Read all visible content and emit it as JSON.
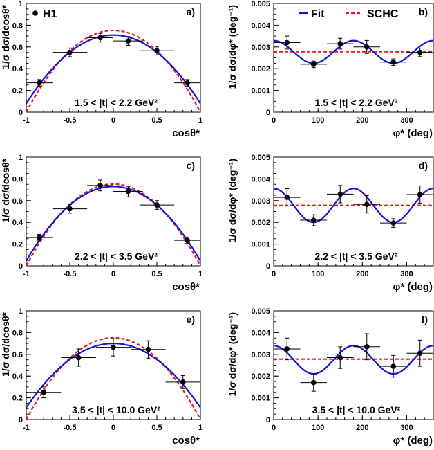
{
  "figure": {
    "legend_left": {
      "marker": "●",
      "label": "H1"
    },
    "legend_right": {
      "fit_label": "Fit",
      "schc_label": "SCHC"
    },
    "colors": {
      "fit": "#1515d6",
      "schc": "#e01b1b",
      "data": "#000000",
      "axis": "#000000"
    }
  },
  "chart_data": [
    {
      "type": "scatter",
      "panel": "a)",
      "t_range": "1.5 < |t| < 2.2 GeV²",
      "xlabel": "cosθ*",
      "ylabel": "1/σ dσ/dcosθ*",
      "xlim": [
        -1,
        1
      ],
      "ylim": [
        0,
        1
      ],
      "xticks": [
        -1,
        -0.5,
        0,
        0.5,
        1
      ],
      "xtick_labels": [
        "-1",
        "-0.5",
        "0",
        "0.5",
        "1"
      ],
      "yticks": [
        0,
        0.2,
        0.4,
        0.6,
        0.8,
        1
      ],
      "ytick_labels": [
        "0",
        "0.2",
        "0.4",
        "0.6",
        "0.8",
        "1"
      ],
      "points": [
        {
          "x": -0.85,
          "y": 0.27,
          "xerr": 0.15,
          "yerr": 0.03
        },
        {
          "x": -0.5,
          "y": 0.55,
          "xerr": 0.2,
          "yerr": 0.04
        },
        {
          "x": -0.15,
          "y": 0.685,
          "xerr": 0.15,
          "yerr": 0.04
        },
        {
          "x": 0.17,
          "y": 0.655,
          "xerr": 0.17,
          "yerr": 0.04
        },
        {
          "x": 0.5,
          "y": 0.565,
          "xerr": 0.2,
          "yerr": 0.04
        },
        {
          "x": 0.85,
          "y": 0.27,
          "xerr": 0.15,
          "yerr": 0.03
        }
      ],
      "fit": {
        "form": "parabola",
        "a": 0.709,
        "b": 0.63
      },
      "schc": {
        "form": "parabola",
        "a": 0.752,
        "b": 0.752
      }
    },
    {
      "type": "scatter",
      "panel": "b)",
      "t_range": "1.5 < |t| < 2.2 GeV²",
      "xlabel": "φ* (deg)",
      "ylabel": "1/σ dσ/dφ* (deg⁻¹)",
      "xlim": [
        0,
        360
      ],
      "ylim": [
        0,
        0.005
      ],
      "xticks": [
        0,
        100,
        200,
        300
      ],
      "xtick_labels": [
        "0",
        "100",
        "200",
        "300"
      ],
      "yticks": [
        0,
        0.001,
        0.002,
        0.003,
        0.004,
        0.005
      ],
      "ytick_labels": [
        "0",
        "0.001",
        "0.002",
        "0.003",
        "0.004",
        "0.005"
      ],
      "points": [
        {
          "x": 30,
          "y": 0.0032,
          "xerr": 30,
          "yerr": 0.0003
        },
        {
          "x": 90,
          "y": 0.0022,
          "xerr": 30,
          "yerr": 0.00015
        },
        {
          "x": 150,
          "y": 0.00315,
          "xerr": 30,
          "yerr": 0.00025
        },
        {
          "x": 210,
          "y": 0.003,
          "xerr": 30,
          "yerr": 0.0003
        },
        {
          "x": 270,
          "y": 0.0023,
          "xerr": 30,
          "yerr": 0.00015
        },
        {
          "x": 330,
          "y": 0.00275,
          "xerr": 30,
          "yerr": 0.0002
        }
      ],
      "fit": {
        "form": "cos2",
        "c0": 0.00277,
        "amp": 0.00052,
        "phase_deg": 180
      },
      "schc": {
        "form": "const",
        "c0": 0.00278
      }
    },
    {
      "type": "scatter",
      "panel": "c)",
      "t_range": "2.2 < |t| < 3.5 GeV²",
      "xlabel": "cosθ*",
      "ylabel": "1/σ dσ/dcosθ*",
      "xlim": [
        -1,
        1
      ],
      "ylim": [
        0,
        1
      ],
      "xticks": [
        -1,
        -0.5,
        0,
        0.5,
        1
      ],
      "xtick_labels": [
        "-1",
        "-0.5",
        "0",
        "0.5",
        "1"
      ],
      "yticks": [
        0,
        0.2,
        0.4,
        0.6,
        0.8,
        1
      ],
      "ytick_labels": [
        "0",
        "0.2",
        "0.4",
        "0.6",
        "0.8",
        "1"
      ],
      "points": [
        {
          "x": -0.85,
          "y": 0.26,
          "xerr": 0.15,
          "yerr": 0.03
        },
        {
          "x": -0.5,
          "y": 0.525,
          "xerr": 0.2,
          "yerr": 0.04
        },
        {
          "x": -0.15,
          "y": 0.74,
          "xerr": 0.15,
          "yerr": 0.05
        },
        {
          "x": 0.17,
          "y": 0.685,
          "xerr": 0.17,
          "yerr": 0.05
        },
        {
          "x": 0.5,
          "y": 0.56,
          "xerr": 0.2,
          "yerr": 0.04
        },
        {
          "x": 0.85,
          "y": 0.235,
          "xerr": 0.15,
          "yerr": 0.03
        }
      ],
      "fit": {
        "form": "parabola",
        "a": 0.73,
        "b": 0.685
      },
      "schc": {
        "form": "parabola",
        "a": 0.752,
        "b": 0.752
      }
    },
    {
      "type": "scatter",
      "panel": "d)",
      "t_range": "2.2 < |t| < 3.5 GeV²",
      "xlabel": "φ* (deg)",
      "ylabel": "1/σ dσ/dφ* (deg⁻¹)",
      "xlim": [
        0,
        360
      ],
      "ylim": [
        0,
        0.005
      ],
      "xticks": [
        0,
        100,
        200,
        300
      ],
      "xtick_labels": [
        "0",
        "100",
        "200",
        "300"
      ],
      "yticks": [
        0,
        0.001,
        0.002,
        0.003,
        0.004,
        0.005
      ],
      "ytick_labels": [
        "0",
        "0.001",
        "0.002",
        "0.003",
        "0.004",
        "0.005"
      ],
      "points": [
        {
          "x": 30,
          "y": 0.00315,
          "xerr": 30,
          "yerr": 0.0004
        },
        {
          "x": 90,
          "y": 0.0021,
          "xerr": 30,
          "yerr": 0.00025
        },
        {
          "x": 150,
          "y": 0.0033,
          "xerr": 30,
          "yerr": 0.0004
        },
        {
          "x": 210,
          "y": 0.00283,
          "xerr": 30,
          "yerr": 0.0004
        },
        {
          "x": 270,
          "y": 0.00197,
          "xerr": 30,
          "yerr": 0.0002
        },
        {
          "x": 330,
          "y": 0.00328,
          "xerr": 30,
          "yerr": 0.0004
        }
      ],
      "fit": {
        "form": "cos2",
        "c0": 0.00278,
        "amp": 0.00078,
        "phase_deg": 180
      },
      "schc": {
        "form": "const",
        "c0": 0.00278
      }
    },
    {
      "type": "scatter",
      "panel": "e)",
      "t_range": "3.5 < |t| < 10.0 GeV²",
      "xlabel": "cosθ*",
      "ylabel": "1/σ dσ/dcosθ*",
      "xlim": [
        -1,
        1
      ],
      "ylim": [
        0,
        1
      ],
      "xticks": [
        -1,
        -0.5,
        0,
        0.5,
        1
      ],
      "xtick_labels": [
        "-1",
        "-0.5",
        "0",
        "0.5",
        "1"
      ],
      "yticks": [
        0,
        0.2,
        0.4,
        0.6,
        0.8,
        1
      ],
      "ytick_labels": [
        "0",
        "0.2",
        "0.4",
        "0.6",
        "0.8",
        "1"
      ],
      "points": [
        {
          "x": -0.8,
          "y": 0.25,
          "xerr": 0.2,
          "yerr": 0.05
        },
        {
          "x": -0.4,
          "y": 0.57,
          "xerr": 0.2,
          "yerr": 0.08
        },
        {
          "x": 0.0,
          "y": 0.665,
          "xerr": 0.2,
          "yerr": 0.08
        },
        {
          "x": 0.4,
          "y": 0.645,
          "xerr": 0.2,
          "yerr": 0.08
        },
        {
          "x": 0.8,
          "y": 0.345,
          "xerr": 0.2,
          "yerr": 0.06
        }
      ],
      "fit": {
        "form": "parabola",
        "a": 0.7,
        "b": 0.59
      },
      "schc": {
        "form": "parabola",
        "a": 0.752,
        "b": 0.752
      }
    },
    {
      "type": "scatter",
      "panel": "f)",
      "t_range": "3.5 < |t| < 10.0 GeV²",
      "xlabel": "φ* (deg)",
      "ylabel": "1/σ dσ/dφ* (deg⁻¹)",
      "xlim": [
        0,
        360
      ],
      "ylim": [
        0,
        0.005
      ],
      "xticks": [
        0,
        100,
        200,
        300
      ],
      "xtick_labels": [
        "0",
        "100",
        "200",
        "300"
      ],
      "yticks": [
        0,
        0.001,
        0.002,
        0.003,
        0.004,
        0.005
      ],
      "ytick_labels": [
        "0",
        "0.001",
        "0.002",
        "0.003",
        "0.004",
        "0.005"
      ],
      "points": [
        {
          "x": 30,
          "y": 0.00325,
          "xerr": 30,
          "yerr": 0.0005
        },
        {
          "x": 90,
          "y": 0.0017,
          "xerr": 30,
          "yerr": 0.0004
        },
        {
          "x": 150,
          "y": 0.00285,
          "xerr": 30,
          "yerr": 0.0005
        },
        {
          "x": 210,
          "y": 0.00335,
          "xerr": 30,
          "yerr": 0.0006
        },
        {
          "x": 270,
          "y": 0.00245,
          "xerr": 30,
          "yerr": 0.0005
        },
        {
          "x": 330,
          "y": 0.00305,
          "xerr": 30,
          "yerr": 0.0006
        }
      ],
      "fit": {
        "form": "cos2",
        "c0": 0.00275,
        "amp": 0.00065,
        "phase_deg": 180
      },
      "schc": {
        "form": "const",
        "c0": 0.00278
      }
    }
  ]
}
